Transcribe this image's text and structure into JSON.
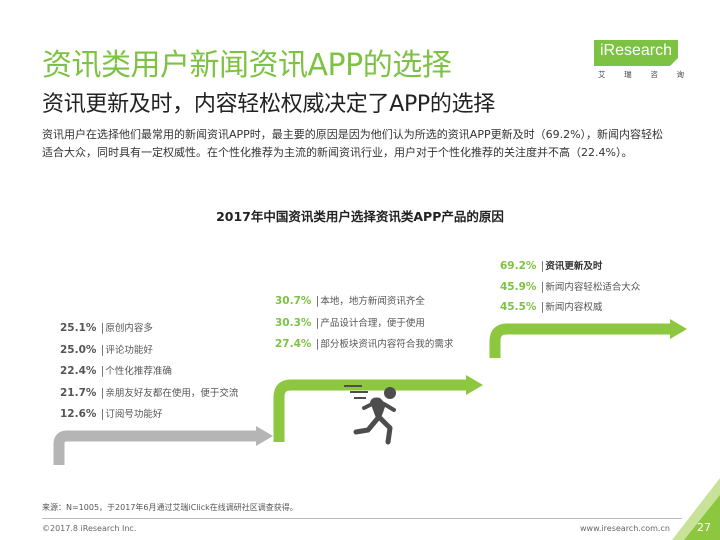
{
  "header": {
    "title": "资讯类用户新闻资讯APP的选择",
    "subtitle": "资讯更新及时，内容轻松权威决定了APP的选择",
    "description": "资讯用户在选择他们最常用的新闻资讯APP时，最主要的原因是因为他们认为所选的资讯APP更新及时（69.2%），新闻内容轻松适合大众，同时具有一定权威性。在个性化推荐为主流的新闻资讯行业，用户对于个性化推荐的关注度并不高（22.4%）。"
  },
  "logo": {
    "text": "iResearch",
    "sub": [
      "艾",
      "瑞",
      "咨",
      "询"
    ]
  },
  "chart_data": {
    "type": "table",
    "title": "2017年中国资讯类用户选择资讯类APP产品的原因",
    "groups": [
      {
        "items": [
          {
            "value": "25.1%",
            "label": "原创内容多"
          },
          {
            "value": "25.0%",
            "label": "评论功能好"
          },
          {
            "value": "22.4%",
            "label": "个性化推荐准确"
          },
          {
            "value": "21.7%",
            "label": "亲朋友好友都在使用，便于交流"
          },
          {
            "value": "12.6%",
            "label": "订阅号功能好"
          }
        ]
      },
      {
        "items": [
          {
            "value": "30.7%",
            "label": "本地，地方新闻资讯齐全"
          },
          {
            "value": "30.3%",
            "label": "产品设计合理，便于使用"
          },
          {
            "value": "27.4%",
            "label": "部分板块资讯内容符合我的需求"
          }
        ]
      },
      {
        "items": [
          {
            "value": "69.2%",
            "label": "资讯更新及时"
          },
          {
            "value": "45.9%",
            "label": "新闻内容轻松适合大众"
          },
          {
            "value": "45.5%",
            "label": "新闻内容权威"
          }
        ]
      }
    ]
  },
  "footer": {
    "source": "来源：N=1005，于2017年6月通过艾瑞iClick在线调研社区调查获得。",
    "copyright": "©2017.8 iResearch Inc.",
    "website": "www.iresearch.com.cn",
    "page_number": "27"
  },
  "colors": {
    "accent": "#7dc243",
    "step_gray": "#b5b5b5",
    "runner": "#4d4d4d",
    "corner": "#8dc63f"
  },
  "icons": {
    "runner": "running-person-icon",
    "logo": "iresearch-logo"
  }
}
